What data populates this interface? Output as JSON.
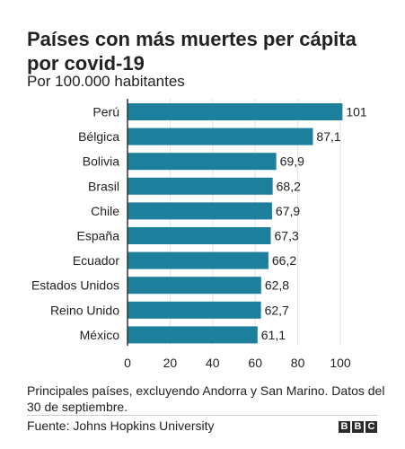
{
  "title": "Países con más muertes per cápita por covid-19",
  "subtitle": "Por 100.000 habitantes",
  "note": "Principales países, excluyendo Andorra y San Marino. Datos del 30 de septiembre.",
  "source": "Fuente: Johns Hopkins University",
  "logo": {
    "letters": [
      "B",
      "B",
      "C"
    ]
  },
  "colors": {
    "bar": "#1c7f9b",
    "grid": "#e3e3e3",
    "axis": "#333333",
    "text": "#222222"
  },
  "chart_data": {
    "type": "bar",
    "orientation": "horizontal",
    "categories": [
      "Perú",
      "Bélgica",
      "Bolivia",
      "Brasil",
      "Chile",
      "España",
      "Ecuador",
      "Estados Unidos",
      "Reino Unido",
      "México"
    ],
    "values": [
      101,
      87.1,
      69.9,
      68.2,
      67.9,
      67.3,
      66.2,
      62.8,
      62.7,
      61.1
    ],
    "value_labels": [
      "101",
      "87,1",
      "69,9",
      "68,2",
      "67,9",
      "67,3",
      "66,2",
      "62,8",
      "62,7",
      "61,1"
    ],
    "x_ticks": [
      0,
      20,
      40,
      60,
      80,
      100
    ],
    "xlim": [
      0,
      110
    ],
    "grid": true
  }
}
